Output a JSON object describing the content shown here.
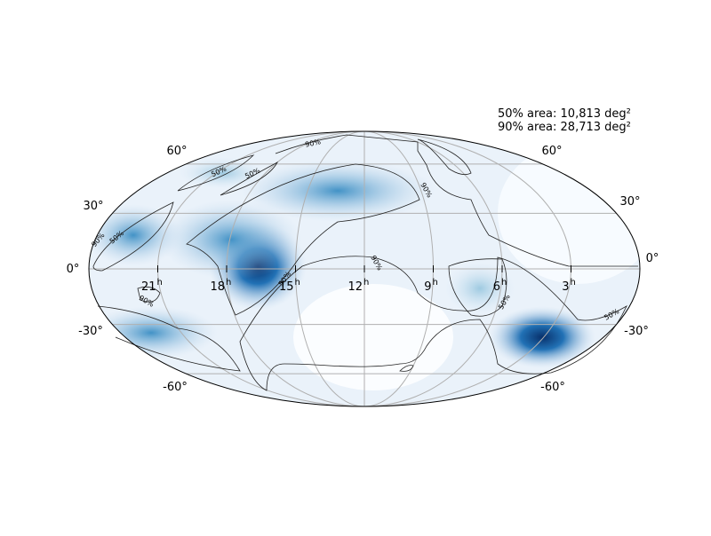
{
  "annotations": [
    "50% area: 10,813 deg²",
    "90% area: 28,713 deg²"
  ],
  "lat_labels_left": [
    "60°",
    "30°",
    "0°",
    "-30°",
    "-60°"
  ],
  "lat_labels_right": [
    "60°",
    "30°",
    "0°",
    "-30°",
    "-60°"
  ],
  "ra_labels": [
    {
      "hour": "21",
      "unit": "h"
    },
    {
      "hour": "18",
      "unit": "h"
    },
    {
      "hour": "15",
      "unit": "h"
    },
    {
      "hour": "12",
      "unit": "h"
    },
    {
      "hour": "9",
      "unit": "h"
    },
    {
      "hour": "6",
      "unit": "h"
    },
    {
      "hour": "3",
      "unit": "h"
    }
  ],
  "contour_labels": [
    "90%",
    "50%",
    "50%",
    "90%",
    "90%",
    "50%",
    "90%",
    "50%",
    "90%",
    "50%",
    "50%"
  ]
}
